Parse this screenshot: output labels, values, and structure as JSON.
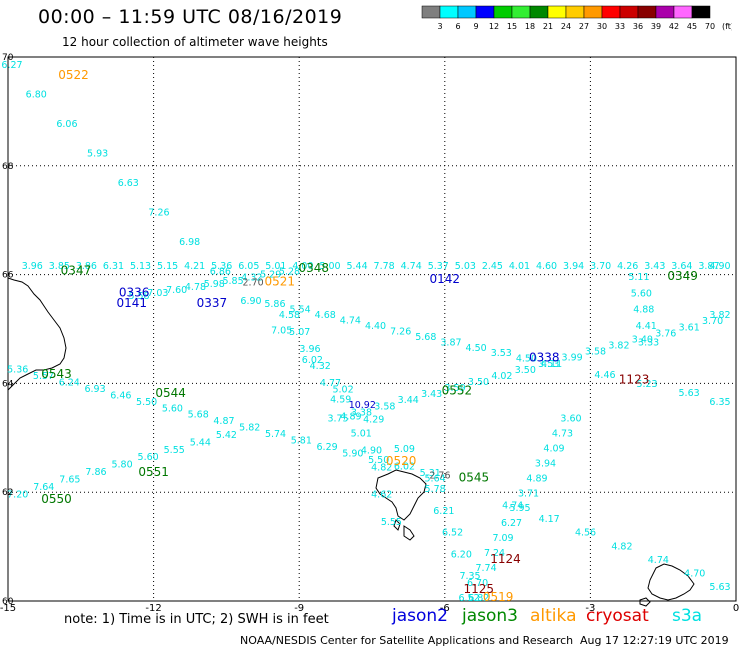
{
  "header": {
    "title": "00:00 – 11:59 UTC 08/16/2019",
    "subtitle": "12 hour collection of altimeter wave heights"
  },
  "colorbar": {
    "labels": [
      "3",
      "6",
      "9",
      "12",
      "15",
      "18",
      "21",
      "24",
      "27",
      "30",
      "33",
      "36",
      "39",
      "42",
      "45",
      "70",
      "(ft)"
    ],
    "colors": [
      "#7f7f7f",
      "#00ffff",
      "#00c8ff",
      "#0000ff",
      "#00cc00",
      "#33ee33",
      "#008800",
      "#ffff00",
      "#ffcc00",
      "#ff9900",
      "#ff0000",
      "#cc0000",
      "#880000",
      "#aa00aa",
      "#ff66ff",
      "#000000"
    ]
  },
  "axes": {
    "lon_labels": [
      "-15",
      "-12",
      "-9",
      "-6",
      "-3",
      "0"
    ],
    "lat_labels": [
      "70",
      "68",
      "66",
      "64",
      "62",
      "60"
    ]
  },
  "satellite_colors": {
    "jason2": "#0000dd",
    "jason3": "#008800",
    "altika": "#ff9900",
    "cryosat": "#dd0000",
    "s3a": "#00e0e0",
    "time": {
      "jason2": "#0000cc",
      "jason3": "#007700",
      "altika": "#ff9900",
      "cryosat": "#880000"
    }
  },
  "pass_times": [
    {
      "label": "0522",
      "sat": "altika",
      "lon": -13.65,
      "lat": 69.6
    },
    {
      "label": "0347",
      "sat": "jason3",
      "lon": -13.6,
      "lat": 66.0
    },
    {
      "label": "0348",
      "sat": "jason3",
      "lon": -8.7,
      "lat": 66.05
    },
    {
      "label": "0521",
      "sat": "altika",
      "lon": -9.4,
      "lat": 65.8
    },
    {
      "label": "0142",
      "sat": "jason2",
      "lon": -6.0,
      "lat": 65.85
    },
    {
      "label": "0349",
      "sat": "jason3",
      "lon": -1.1,
      "lat": 65.9
    },
    {
      "label": "0336",
      "sat": "jason2",
      "lon": -12.4,
      "lat": 65.6
    },
    {
      "label": "0141",
      "sat": "jason2",
      "lon": -12.45,
      "lat": 65.4
    },
    {
      "label": "0337",
      "sat": "jason2",
      "lon": -10.8,
      "lat": 65.4
    },
    {
      "label": "0543",
      "sat": "jason3",
      "lon": -14.0,
      "lat": 64.1
    },
    {
      "label": "0544",
      "sat": "jason3",
      "lon": -11.65,
      "lat": 63.75
    },
    {
      "label": "0552",
      "sat": "jason3",
      "lon": -5.75,
      "lat": 63.8
    },
    {
      "label": "0338",
      "sat": "jason2",
      "lon": -3.95,
      "lat": 64.4
    },
    {
      "label": "1123",
      "sat": "cryosat",
      "lon": -2.1,
      "lat": 64.0
    },
    {
      "label": "0551",
      "sat": "jason3",
      "lon": -12.0,
      "lat": 62.3
    },
    {
      "label": "0520",
      "sat": "altika",
      "lon": -6.9,
      "lat": 62.5
    },
    {
      "label": "0545",
      "sat": "jason3",
      "lon": -5.4,
      "lat": 62.2
    },
    {
      "label": "0550",
      "sat": "jason3",
      "lon": -14.0,
      "lat": 61.8
    },
    {
      "label": "1124",
      "sat": "cryosat",
      "lon": -4.75,
      "lat": 60.7
    },
    {
      "label": "1125",
      "sat": "cryosat",
      "lon": -5.3,
      "lat": 60.15
    },
    {
      "label": "0519",
      "sat": "altika",
      "lon": -4.9,
      "lat": 60.0
    }
  ],
  "tracks": [
    {
      "sat": "s3a",
      "from": [
        -15.05,
        69.8
      ],
      "to": [
        -6.2,
        62.2
      ],
      "values": [
        "6.27",
        "6.80",
        "6.06",
        "5.93",
        "6.63",
        "7.26",
        "6.98",
        "6.86",
        "6.90",
        "7.05",
        "6.02",
        "5.02",
        "4.29",
        "5.09",
        "5.64"
      ]
    },
    {
      "sat": "s3a",
      "from": [
        -14.5,
        66.1
      ],
      "to": [
        0,
        66.1
      ],
      "values": [
        "3.96",
        "3.85",
        "3.86",
        "6.31",
        "5.13",
        "5.15",
        "4.21",
        "5.36",
        "6.05",
        "5.01",
        "4.00",
        "5.00",
        "5.44",
        "7.78",
        "4.74",
        "5.37",
        "5.03",
        "2.45",
        "4.01",
        "4.60",
        "3.94",
        "3.70",
        "4.26",
        "3.43",
        "3.64",
        "3.87",
        "4.90"
      ]
    },
    {
      "sat": "s3a",
      "from": [
        -12.3,
        65.55
      ],
      "to": [
        -9.2,
        66.0
      ],
      "values": [
        "5.58",
        "7.03",
        "7.60",
        "4.78",
        "5.98",
        "5.85",
        "4.32",
        "5.29",
        "5.28"
      ]
    },
    {
      "sat": "s3a",
      "from": [
        -9.5,
        65.4
      ],
      "to": [
        -3.8,
        64.3
      ],
      "values": [
        "5.86",
        "5.54",
        "4.68",
        "4.74",
        "4.40",
        "7.26",
        "5.68",
        "3.87",
        "4.50",
        "3.53",
        "4.50",
        "4.11"
      ]
    },
    {
      "sat": "s3a",
      "from": [
        -9.2,
        65.2
      ],
      "to": [
        -7.3,
        62.4
      ],
      "values": [
        "4.58",
        "5.07",
        "3.96",
        "4.32",
        "4.77",
        "4.59",
        "4.89",
        "5.01",
        "4.90",
        "4.82"
      ]
    },
    {
      "sat": "s3a",
      "from": [
        -14.8,
        64.2
      ],
      "to": [
        -6.3,
        62.3
      ],
      "values": [
        "5.36",
        "5.57",
        "6.24",
        "6.93",
        "6.46",
        "5.50",
        "5.60",
        "5.68",
        "4.87",
        "5.82",
        "5.74",
        "5.81",
        "6.29",
        "5.90",
        "5.50",
        "6.02",
        "5.31"
      ]
    },
    {
      "sat": "s3a",
      "from": [
        -14.8,
        61.9
      ],
      "to": [
        -10.5,
        63.0
      ],
      "values": [
        "7.20",
        "7.64",
        "7.65",
        "7.86",
        "5.80",
        "5.60",
        "5.55",
        "5.44",
        "5.42"
      ]
    },
    {
      "sat": "s3a",
      "from": [
        -8.2,
        63.3
      ],
      "to": [
        0,
        65.2
      ],
      "values": [
        "3.75",
        "3.38",
        "3.58",
        "3.44",
        "3.43",
        "3.59",
        "3.50",
        "4.02",
        "3.50",
        "3.53",
        "3.99",
        "3.58",
        "3.82",
        "3.40",
        "3.76",
        "3.61",
        "3.70",
        "3.82"
      ]
    },
    {
      "sat": "s3a",
      "from": [
        -2.0,
        65.9
      ],
      "to": [
        -1.8,
        64.7
      ],
      "values": [
        "5.11",
        "5.60",
        "4.88",
        "4.41",
        "3.33"
      ]
    },
    {
      "sat": "s3a",
      "from": [
        -3.4,
        63.3
      ],
      "to": [
        -5.5,
        60.0
      ],
      "values": [
        "3.60",
        "4.73",
        "4.09",
        "3.94",
        "4.89",
        "3.71",
        "5.95",
        "6.27",
        "7.09",
        "7.24",
        "7.74",
        "6.70",
        "6.52"
      ]
    },
    {
      "sat": "s3a",
      "from": [
        -2.7,
        64.1
      ],
      "to": [
        -0.1,
        63.6
      ],
      "values": [
        "4.46",
        "5.23",
        "5.63",
        "6.35"
      ]
    },
    {
      "sat": "s3a",
      "from": [
        -6.2,
        62.0
      ],
      "to": [
        -5.3,
        60.0
      ],
      "values": [
        "5.78",
        "6.21",
        "6.52",
        "6.20",
        "7.35",
        "6.82"
      ]
    },
    {
      "sat": "s3a",
      "from": [
        -4.6,
        61.7
      ],
      "to": [
        -0.1,
        60.2
      ],
      "values": [
        "4.74",
        "4.17",
        "4.56",
        "4.82",
        "4.74",
        "4.70",
        "5.63"
      ]
    },
    {
      "sat": "s3a",
      "from": [
        -7.3,
        61.9
      ],
      "to": [
        -7.1,
        61.4
      ],
      "values": [
        "4.62",
        "5.55"
      ]
    }
  ],
  "extra_labels": [
    {
      "text": "10.92",
      "color": "#0000cc",
      "lon": -7.7,
      "lat": 63.55
    },
    {
      "text": "2.70",
      "color": "#555555",
      "lon": -9.95,
      "lat": 65.8
    },
    {
      "text": "2.76",
      "color": "#555555",
      "lon": -6.1,
      "lat": 62.25
    }
  ],
  "footer": {
    "note": "note: 1) Time is in UTC; 2) SWH is in feet",
    "jason2": "jason2",
    "jason3": "jason3",
    "altika": "altika",
    "cryosat": "cryosat",
    "s3a": "s3a",
    "credit": "NOAA/NESDIS Center for Satellite Applications and Research",
    "stamp": "Aug 17 12:27:19 UTC 2019"
  }
}
